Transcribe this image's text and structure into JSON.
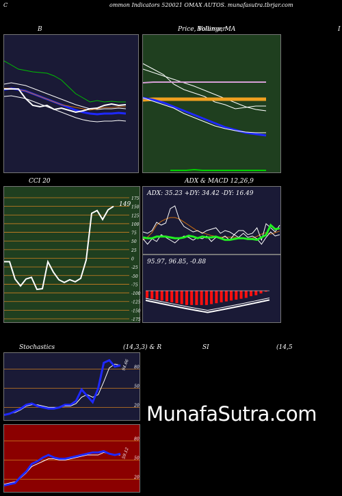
{
  "header": {
    "left_letter": "C",
    "title": "ommon  Indicators 520021 OMAX  AUTOS. munafasutra.tbrjar.com"
  },
  "panels": {
    "bollinger": {
      "title": "B"
    },
    "price_ma": {
      "title": "Price,  Volume,  MA",
      "overlay": "Bollinger"
    },
    "edge_letter": "I",
    "cci": {
      "title": "CCI 20",
      "last_value": "149"
    },
    "adx_macd": {
      "title": "ADX  & MACD 12,26,9",
      "adx_text": "ADX: 35.23  +DY: 34.42  -DY: 16.49",
      "macd_text": "95.97,  96.85,  -0.88"
    },
    "stochastics": {
      "title_left": "Stochastics",
      "title_mid": "(14,3,3) & R",
      "title_right": "SI",
      "title_far": "(14,5",
      "value_label": "94.66"
    },
    "rsi": {
      "value_label": "59.12"
    }
  },
  "brand": "MunafaSutra.com",
  "colors": {
    "navy_bg": "#1a1a36",
    "green_bg": "#1f3f1f",
    "red_bg": "#8b0000",
    "grid_orange": "#d08020",
    "blue": "#1e28ff",
    "white": "#ffffff",
    "green": "#00d000",
    "bright_green": "#22ee22"
  },
  "chart_data": [
    {
      "type": "line",
      "title": "B",
      "series": [
        {
          "values": [
            205,
            210,
            215,
            218,
            222,
            225,
            230,
            240,
            248,
            258,
            268,
            278,
            285,
            282,
            287,
            286,
            288,
            289
          ]
        },
        {
          "values": [
            178,
            180,
            178,
            176,
            172,
            168,
            164,
            160,
            156,
            152,
            148,
            145,
            142,
            141,
            142,
            142,
            143,
            142
          ]
        },
        {
          "values": [
            172,
            174,
            172,
            170,
            166,
            162,
            158,
            154,
            150,
            146,
            142,
            139,
            137,
            136,
            137,
            137,
            138,
            137
          ]
        },
        {
          "values": [
            165,
            166,
            164,
            162,
            158,
            154,
            150,
            146,
            142,
            138,
            134,
            131,
            129,
            128,
            129,
            129,
            130,
            129
          ]
        },
        {
          "values": [
            174,
            174,
            174,
            160,
            150,
            148,
            150,
            144,
            146,
            143,
            140,
            142,
            145,
            146,
            150,
            152,
            150,
            151
          ]
        },
        {
          "values": [
            168,
            168,
            166,
            164,
            162,
            158,
            154,
            150,
            146,
            142,
            138,
            134,
            131,
            130,
            130,
            130,
            131,
            131
          ]
        }
      ]
    },
    {
      "type": "line",
      "title": "Price,  Volume,  MA",
      "series": [
        {
          "values": [
            175,
            170,
            165,
            160,
            152,
            146,
            140,
            134,
            130,
            127,
            125,
            124,
            124
          ]
        },
        {
          "values": [
            150,
            151,
            151,
            151,
            151,
            151,
            151,
            151,
            151,
            151,
            151,
            151,
            151
          ]
        },
        {
          "values": [
            155,
            152,
            148,
            142,
            136,
            130,
            124,
            118,
            112,
            108,
            104,
            102,
            100
          ]
        },
        {
          "values": [
            165,
            160,
            155,
            150,
            145,
            140,
            134,
            128,
            122,
            116,
            110,
            106,
            104
          ]
        },
        {
          "values": [
            168,
            160,
            152,
            138,
            130,
            125,
            120,
            112,
            108,
            102,
            104,
            106,
            106
          ]
        },
        {
          "values": [
            158,
            152,
            145,
            138,
            130,
            124,
            118,
            110,
            102,
            96,
            96,
            98,
            100
          ]
        }
      ]
    },
    {
      "type": "line",
      "title": "CCI 20",
      "y_ticks": [
        175,
        150,
        125,
        100,
        75,
        50,
        25,
        0,
        -25,
        -50,
        -75,
        -100,
        -125,
        -150,
        -175
      ],
      "ylim": [
        -175,
        175
      ],
      "series": [
        {
          "values": [
            -10,
            -10,
            -60,
            -80,
            -60,
            -55,
            -90,
            -88,
            -10,
            -40,
            -62,
            -70,
            -62,
            -68,
            -58,
            -5,
            130,
            138,
            112,
            140,
            150
          ]
        }
      ]
    },
    {
      "type": "line",
      "title": "ADX  & MACD 12,26,9",
      "series": [
        {
          "values": [
            15,
            14,
            14,
            16,
            16,
            16,
            15,
            14,
            14,
            15,
            17,
            16,
            14,
            16,
            15,
            15,
            16,
            14,
            12,
            12,
            13,
            14,
            14,
            13,
            13,
            12,
            15,
            18,
            30,
            25,
            26
          ]
        },
        {
          "values": [
            20,
            24,
            30,
            40,
            45,
            48,
            50,
            50,
            48,
            44,
            40,
            36,
            32,
            30,
            28,
            26,
            25,
            24,
            24,
            24,
            24,
            23,
            23,
            22,
            23,
            25,
            28,
            30,
            28,
            30,
            32
          ]
        },
        {
          "values": [
            22,
            20,
            24,
            36,
            32,
            35,
            56,
            60,
            40,
            30,
            26,
            22,
            24,
            20,
            24,
            26,
            28,
            20,
            24,
            22,
            18,
            24,
            24,
            18,
            20,
            28,
            10,
            34,
            28,
            22,
            32
          ]
        },
        {
          "values": [
            18,
            10,
            18,
            14,
            24,
            20,
            16,
            12,
            18,
            22,
            20,
            16,
            20,
            18,
            22,
            14,
            20,
            18,
            22,
            16,
            24,
            20,
            26,
            20,
            22,
            18,
            10,
            20,
            28,
            22,
            24
          ]
        }
      ]
    },
    {
      "type": "bar",
      "title": "95.97,  96.85,  -0.88",
      "values": [
        -8,
        -9,
        -10,
        -11,
        -12,
        -13,
        -14,
        -15,
        -16,
        -16,
        -16,
        -16,
        -16,
        -15,
        -14,
        -13,
        -12,
        -11,
        -10,
        -9,
        -8,
        -6,
        -5,
        -3,
        -1
      ]
    },
    {
      "type": "line",
      "title": "Stochastics",
      "y_ticks": [
        80,
        50,
        20
      ],
      "ylim": [
        0,
        100
      ],
      "series": [
        {
          "values": [
            8,
            10,
            14,
            18,
            24,
            26,
            22,
            20,
            18,
            18,
            20,
            24,
            24,
            30,
            48,
            38,
            28,
            50,
            90,
            94,
            84,
            86
          ]
        },
        {
          "values": [
            8,
            10,
            12,
            16,
            22,
            24,
            24,
            22,
            20,
            20,
            20,
            22,
            22,
            26,
            36,
            40,
            36,
            40,
            60,
            82,
            88,
            86
          ]
        }
      ]
    },
    {
      "type": "line",
      "title": "SI",
      "y_ticks": [
        80,
        50,
        20
      ],
      "ylim": [
        0,
        100
      ],
      "series": [
        {
          "values": [
            10,
            12,
            14,
            24,
            32,
            44,
            48,
            54,
            58,
            54,
            52,
            52,
            54,
            56,
            58,
            60,
            62,
            62,
            64,
            60,
            58,
            60
          ]
        },
        {
          "values": [
            12,
            14,
            16,
            22,
            30,
            40,
            44,
            48,
            52,
            52,
            50,
            50,
            52,
            54,
            56,
            58,
            58,
            58,
            62,
            60,
            58,
            58
          ]
        }
      ]
    }
  ]
}
